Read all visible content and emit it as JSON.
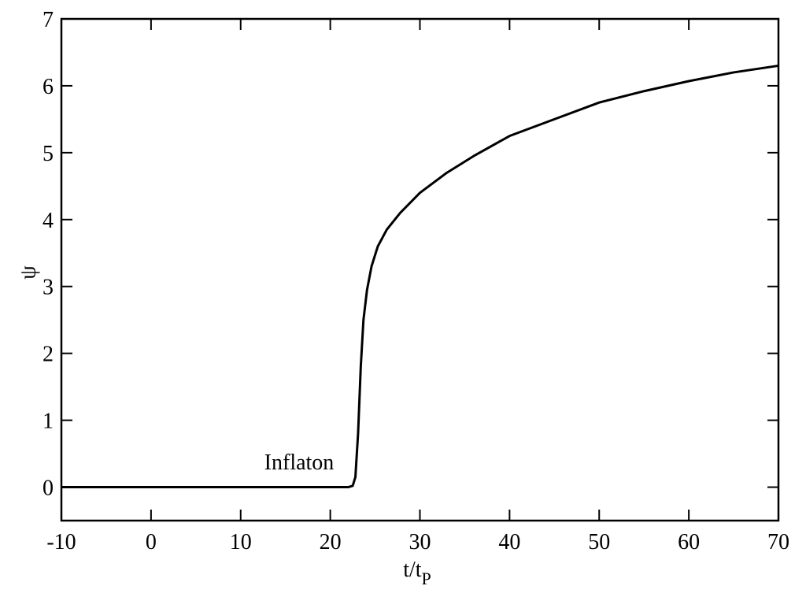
{
  "chart_data": {
    "type": "line",
    "xlabel": "t/t",
    "xlabel_subscript": "P",
    "ylabel": "ψ",
    "annotation": "Inflaton",
    "x": [
      -10,
      22,
      22.5,
      22.8,
      23.1,
      23.4,
      23.7,
      24.1,
      24.6,
      25.3,
      26.3,
      27.8,
      30,
      33,
      36,
      40,
      45,
      50,
      55,
      60,
      65,
      70
    ],
    "series": [
      {
        "color": "#000000",
        "values": [
          0,
          0,
          0.02,
          0.15,
          0.8,
          1.8,
          2.5,
          2.95,
          3.3,
          3.6,
          3.85,
          4.1,
          4.4,
          4.7,
          4.95,
          5.25,
          5.5,
          5.75,
          5.92,
          6.07,
          6.2,
          6.3
        ]
      }
    ],
    "xlim": [
      -10,
      70
    ],
    "xticks": [
      -10,
      0,
      10,
      20,
      30,
      40,
      50,
      60,
      70
    ],
    "ylim": [
      -0.5,
      7
    ],
    "yticks": [
      0,
      1,
      2,
      3,
      4,
      5,
      6,
      7
    ],
    "grid": false
  }
}
